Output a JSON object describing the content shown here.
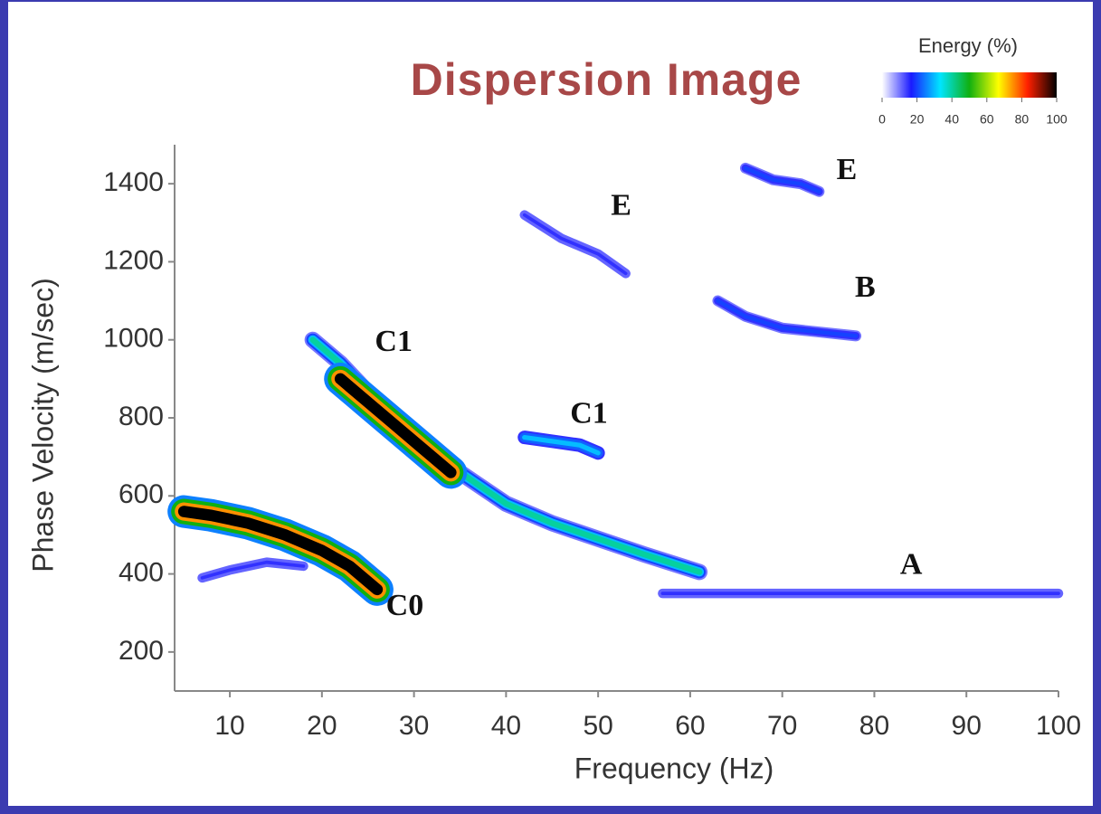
{
  "chart_data": {
    "type": "dispersion",
    "title": "Dispersion Image",
    "xlabel": "Frequency (Hz)",
    "ylabel": "Phase Velocity (m/sec)",
    "xlim": [
      4,
      100
    ],
    "ylim": [
      100,
      1500
    ],
    "xticks": [
      10,
      20,
      30,
      40,
      50,
      60,
      70,
      80,
      90,
      100
    ],
    "yticks": [
      200,
      400,
      600,
      800,
      1000,
      1200,
      1400
    ],
    "colorbar": {
      "title": "Energy (%)",
      "ticks": [
        0,
        20,
        40,
        60,
        80,
        100
      ],
      "colors": [
        "#ffffff",
        "#1a1aff",
        "#00e5ff",
        "#10b010",
        "#ffff00",
        "#ff2000",
        "#000000"
      ]
    },
    "series": [
      {
        "x": [
          5,
          8,
          12,
          16,
          20,
          23,
          26
        ],
        "y": [
          560,
          550,
          530,
          500,
          460,
          420,
          360
        ],
        "energy": 100
      },
      {
        "x": [
          7,
          10,
          14,
          18
        ],
        "y": [
          390,
          410,
          430,
          420
        ],
        "energy": 15
      },
      {
        "x": [
          19,
          22,
          26,
          30,
          35,
          40,
          45,
          50,
          55,
          61
        ],
        "y": [
          1000,
          940,
          840,
          760,
          660,
          580,
          530,
          490,
          450,
          405
        ],
        "energy": 40
      },
      {
        "x": [
          22,
          25,
          28,
          31,
          34
        ],
        "y": [
          900,
          840,
          780,
          720,
          660
        ],
        "energy": 100
      },
      {
        "x": [
          42,
          45,
          48,
          50
        ],
        "y": [
          750,
          740,
          730,
          710
        ],
        "energy": 30
      },
      {
        "x": [
          42,
          46,
          50,
          53
        ],
        "y": [
          1320,
          1260,
          1220,
          1170
        ],
        "energy": 15
      },
      {
        "x": [
          66,
          69,
          72,
          74
        ],
        "y": [
          1440,
          1410,
          1400,
          1380
        ],
        "energy": 20
      },
      {
        "x": [
          63,
          66,
          70,
          74,
          78
        ],
        "y": [
          1100,
          1060,
          1030,
          1020,
          1010
        ],
        "energy": 20
      },
      {
        "x": [
          57,
          65,
          75,
          85,
          95,
          100
        ],
        "y": [
          350,
          350,
          350,
          350,
          350,
          350
        ],
        "energy": 15
      }
    ],
    "annotations": [
      {
        "text": "C0",
        "x": 29,
        "y": 313
      },
      {
        "text": "C1",
        "x": 27.8,
        "y": 990
      },
      {
        "text": "C1",
        "x": 49,
        "y": 805
      },
      {
        "text": "E",
        "x": 52.5,
        "y": 1338
      },
      {
        "text": "E",
        "x": 77,
        "y": 1430
      },
      {
        "text": "B",
        "x": 79,
        "y": 1129
      },
      {
        "text": "A",
        "x": 84,
        "y": 418
      }
    ]
  }
}
